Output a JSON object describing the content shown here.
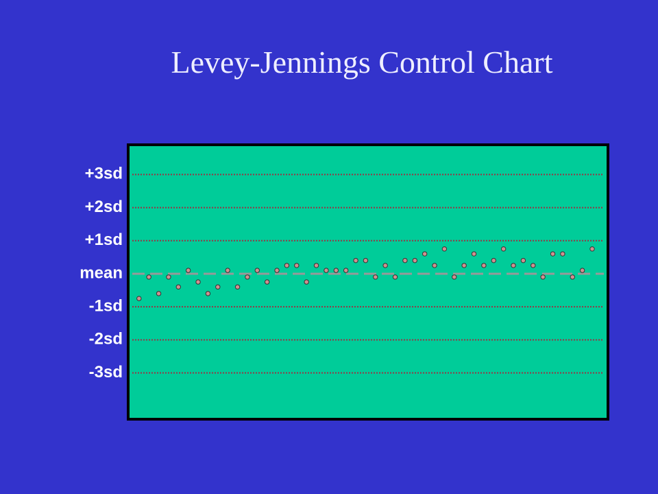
{
  "chart_data": {
    "type": "scatter",
    "title": "Levey-Jennings Control Chart",
    "ylim": [
      -4.4,
      3.9
    ],
    "xlim": [
      -0.1,
      48.6
    ],
    "yticks": [
      {
        "value": 3,
        "label": "+3sd"
      },
      {
        "value": 2,
        "label": "+2sd"
      },
      {
        "value": 1,
        "label": "+1sd"
      },
      {
        "value": 0,
        "label": "mean"
      },
      {
        "value": -1,
        "label": "-1sd"
      },
      {
        "value": -2,
        "label": "-2sd"
      },
      {
        "value": -3,
        "label": "-3sd"
      }
    ],
    "grid": true,
    "background_color": "#3333cc",
    "plot_color": "#00cc99",
    "sd_line_color": "#993344",
    "mean_line_color": "#999999",
    "series": [
      {
        "color": "#d09090",
        "x": [
          1,
          2,
          3,
          4,
          5,
          6,
          7,
          8,
          9,
          10,
          11,
          12,
          13,
          14,
          15,
          16,
          17,
          18,
          19,
          20,
          21,
          22,
          23,
          24,
          25,
          26,
          27,
          28,
          29,
          30,
          31,
          32,
          33,
          34,
          35,
          36,
          37,
          38,
          39,
          40,
          41,
          42,
          43,
          44,
          45,
          46,
          47
        ],
        "values": [
          -0.75,
          -0.1,
          -0.6,
          -0.1,
          -0.4,
          0.1,
          -0.25,
          -0.6,
          -0.4,
          0.1,
          -0.4,
          -0.1,
          0.1,
          -0.25,
          0.1,
          0.25,
          0.25,
          -0.25,
          0.25,
          0.1,
          0.1,
          0.1,
          0.4,
          0.4,
          -0.1,
          0.25,
          -0.1,
          0.4,
          0.4,
          0.6,
          0.25,
          0.75,
          -0.1,
          0.25,
          0.6,
          0.25,
          0.4,
          0.75,
          0.25,
          0.4,
          0.25,
          -0.1,
          0.6,
          0.6,
          -0.1,
          0.1,
          0.75
        ]
      }
    ]
  }
}
